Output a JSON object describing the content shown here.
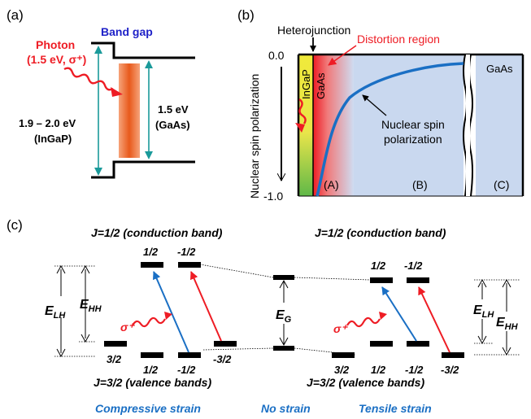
{
  "panels": {
    "a": {
      "label": "(a)",
      "band_gap_title": "Band gap",
      "photon_label": "Photon",
      "photon_detail": "(1.5 eV, σ⁺)",
      "left_gap_value": "1.9 – 2.0 eV",
      "left_gap_material": "(InGaP)",
      "right_gap_value": "1.5 eV",
      "right_gap_material": "(GaAs)"
    },
    "b": {
      "label": "(b)",
      "heterojunction_label": "Heterojunction",
      "distortion_label": "Distortion region",
      "y_axis_label": "Nuclear spin polarization",
      "y_top_tick": "0.0",
      "y_bottom_tick": "-1.0",
      "layer_ingap": "InGaP",
      "layer_gaas_left": "GaAs",
      "layer_gaas_right": "GaAs",
      "curve_label_line1": "Nuclear spin",
      "curve_label_line2": "polarization",
      "region_a": "(A)",
      "region_b": "(B)",
      "region_c": "(C)",
      "colors": {
        "curve": "#1a6fc4",
        "distortion": "#ee1c24",
        "region_fill": "#c8d8f0"
      }
    },
    "c": {
      "label": "(c)",
      "conduction_left": "J=1/2 (conduction band)",
      "conduction_right": "J=1/2 (conduction band)",
      "valence_left": "J=3/2 (valence bands)",
      "valence_right": "J=3/2 (valence bands)",
      "cb_levels": [
        "1/2",
        "-1/2"
      ],
      "vb_levels_left": [
        "3/2",
        "1/2",
        "-1/2",
        "-3/2"
      ],
      "vb_levels_right": [
        "3/2",
        "1/2",
        "-1/2",
        "-3/2"
      ],
      "sigma_label": "σ⁺",
      "e_lh": "E",
      "e_lh_sub": "LH",
      "e_hh": "E",
      "e_hh_sub": "HH",
      "e_g": "E",
      "e_g_sub": "G",
      "strain_compressive": "Compressive strain",
      "strain_none": "No strain",
      "strain_tensile": "Tensile strain",
      "colors": {
        "blue": "#1a6fc4",
        "red": "#ee1c24"
      }
    }
  }
}
